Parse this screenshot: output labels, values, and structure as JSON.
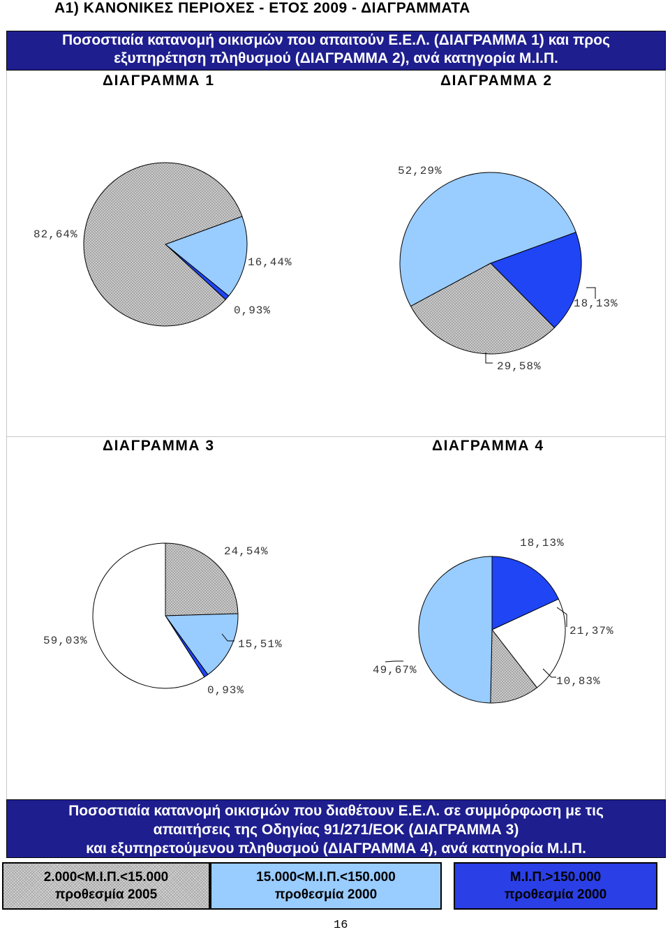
{
  "heading": "Α1) ΚΑΝΟΝΙΚΕΣ ΠΕΡΙΟΧΕΣ - ΕΤΟΣ 2009 - ΔΙΑΓΡΑΜΜΑΤΑ",
  "top_banner": {
    "line1": "Ποσοστιαία κατανομή οικισμών που απαιτούν Ε.Ε.Λ. (ΔΙΑΓΡΑΜΜΑ 1) και προς",
    "line2": "εξυπηρέτηση πληθυσμού (ΔΙΑΓΡΑΜΜΑ 2), ανά κατηγορία Μ.Ι.Π."
  },
  "bottom_banner": {
    "line1": "Ποσοστιαία κατανομή οικισμών που διαθέτουν Ε.Ε.Λ. σε συμμόρφωση  με τις",
    "line2": "απαιτήσεις της Οδηγίας 91/271/ΕΟΚ (ΔΙΑΓΡΑΜΜΑ 3)",
    "line3": "και εξυπηρετούμενου πληθυσμού (ΔΙΑΓΡΑΜΜΑ 4), ανά κατηγορία Μ.Ι.Π."
  },
  "legend": [
    {
      "line1": "2.000<Μ.Ι.Π.<15.000",
      "line2": "προθεσμία 2005",
      "color": "#d8d8d8"
    },
    {
      "line1": "15.000<Μ.Ι.Π.<150.000",
      "line2": "προθεσμία 2000",
      "color": "#99ccff"
    },
    {
      "line1": "Μ.Ι.Π.>150.000",
      "line2": "προθεσμία 2000",
      "color": "#2a3fe6"
    }
  ],
  "page_number": "16",
  "colors": {
    "hatched": "#d8d8d8",
    "light_blue": "#99ccff",
    "dark_blue": "#1f45f5",
    "white": "#ffffff",
    "banner": "#1e1e8f"
  },
  "chart_data": [
    {
      "type": "pie",
      "title": "ΔΙΑΓΡΑΜΜΑ 1",
      "slices": [
        {
          "label": "16,44%",
          "value": 16.44,
          "color": "light_blue"
        },
        {
          "label": "0,93%",
          "value": 0.93,
          "color": "dark_blue"
        },
        {
          "label": "82,64%",
          "value": 82.64,
          "color": "hatched"
        }
      ]
    },
    {
      "type": "pie",
      "title": "ΔΙΑΓΡΑΜΜΑ 2",
      "slices": [
        {
          "label": "18,13%",
          "value": 18.13,
          "color": "dark_blue"
        },
        {
          "label": "29,58%",
          "value": 29.58,
          "color": "hatched"
        },
        {
          "label": "52,29%",
          "value": 52.29,
          "color": "light_blue"
        }
      ]
    },
    {
      "type": "pie",
      "title": "ΔΙΑΓΡΑΜΜΑ 3",
      "slices": [
        {
          "label": "24,54%",
          "value": 24.54,
          "color": "hatched"
        },
        {
          "label": "15,51%",
          "value": 15.51,
          "color": "light_blue"
        },
        {
          "label": "0,93%",
          "value": 0.93,
          "color": "dark_blue"
        },
        {
          "label": "59,03%",
          "value": 59.03,
          "color": "white"
        }
      ]
    },
    {
      "type": "pie",
      "title": "ΔΙΑΓΡΑΜΜΑ 4",
      "slices": [
        {
          "label": "18,13%",
          "value": 18.13,
          "color": "dark_blue"
        },
        {
          "label": "21,37%",
          "value": 21.37,
          "color": "white"
        },
        {
          "label": "10,83%",
          "value": 10.83,
          "color": "hatched"
        },
        {
          "label": "49,67%",
          "value": 49.67,
          "color": "light_blue"
        }
      ]
    }
  ]
}
